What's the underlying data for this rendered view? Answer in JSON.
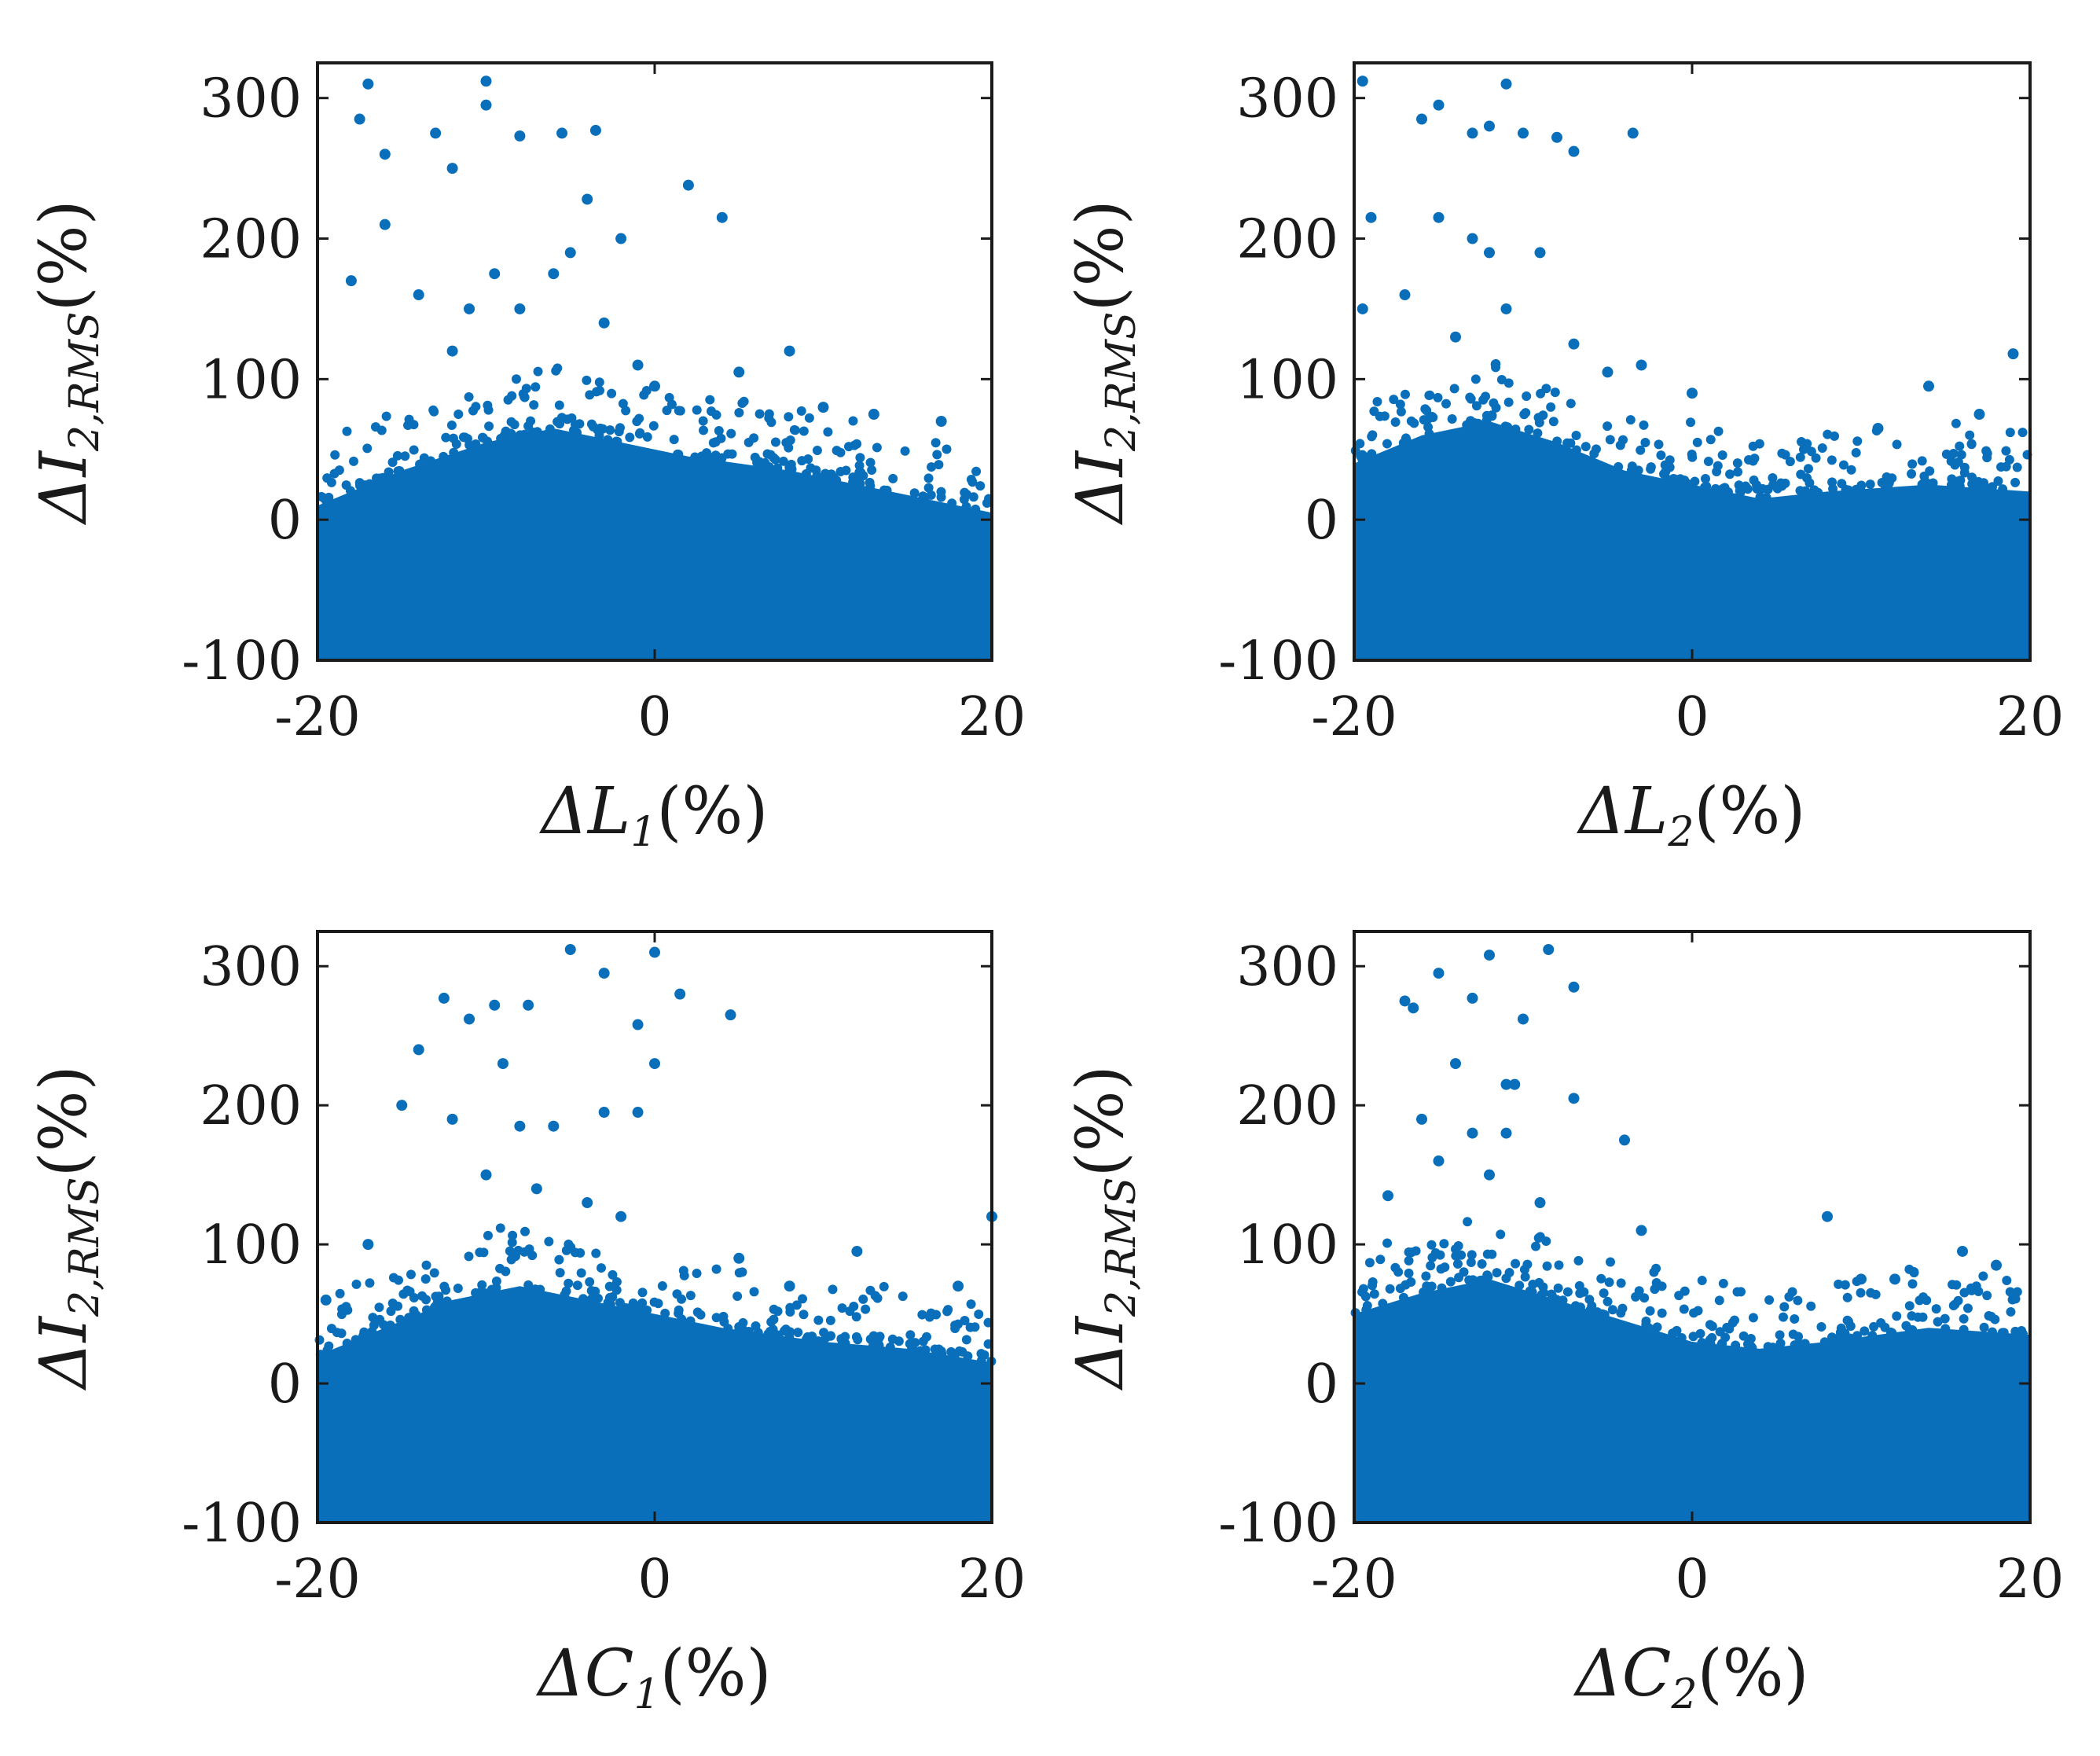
{
  "figure": {
    "marker_color": "#0a6fbb",
    "axis_color": "#1a1a1a"
  },
  "chart_data": [
    {
      "type": "scatter",
      "id": "L1",
      "xlabel": "ΔL1(%)",
      "xlabel_parts": {
        "symbol": "ΔL",
        "sub": "1",
        "unit": "(%)"
      },
      "ylabel": "ΔI2,RMS(%)",
      "ylabel_parts": {
        "symbol": "ΔI",
        "sub": "2,RMS",
        "unit": "(%)"
      },
      "xlim": [
        -20,
        20
      ],
      "ylim": [
        -100,
        325
      ],
      "xticks": [
        "-20",
        "0",
        "20"
      ],
      "yticks": [
        "-100",
        "0",
        "100",
        "200",
        "300"
      ],
      "cluster": {
        "x_range": [
          -20,
          20
        ],
        "y_low": -100,
        "upper_envelope": [
          [
            -20,
            10
          ],
          [
            -15,
            35
          ],
          [
            -10,
            55
          ],
          [
            -6,
            65
          ],
          [
            -2,
            55
          ],
          [
            2,
            45
          ],
          [
            8,
            35
          ],
          [
            14,
            20
          ],
          [
            20,
            5
          ]
        ]
      },
      "outliers": [
        [
          -17,
          310
        ],
        [
          -10,
          312
        ],
        [
          -10,
          295
        ],
        [
          -17.5,
          285
        ],
        [
          -13,
          275
        ],
        [
          -8,
          273
        ],
        [
          -5.5,
          275
        ],
        [
          -3.5,
          277
        ],
        [
          -16,
          260
        ],
        [
          -12,
          250
        ],
        [
          -4,
          228
        ],
        [
          2,
          238
        ],
        [
          4,
          215
        ],
        [
          -2,
          200
        ],
        [
          -16,
          210
        ],
        [
          -9.5,
          175
        ],
        [
          -6,
          175
        ],
        [
          -14,
          160
        ],
        [
          -11,
          150
        ],
        [
          -5,
          190
        ],
        [
          -8,
          150
        ],
        [
          -18,
          170
        ],
        [
          -3,
          140
        ],
        [
          -1,
          110
        ],
        [
          5,
          105
        ],
        [
          8,
          120
        ],
        [
          -12,
          120
        ],
        [
          0,
          95
        ],
        [
          10,
          80
        ],
        [
          17,
          70
        ],
        [
          13,
          75
        ]
      ]
    },
    {
      "type": "scatter",
      "id": "L2",
      "xlabel": "ΔL2(%)",
      "xlabel_parts": {
        "symbol": "ΔL",
        "sub": "2",
        "unit": "(%)"
      },
      "ylabel": "ΔI2,RMS(%)",
      "ylabel_parts": {
        "symbol": "ΔI",
        "sub": "2,RMS",
        "unit": "(%)"
      },
      "xlim": [
        -20,
        20
      ],
      "ylim": [
        -100,
        325
      ],
      "xticks": [
        "-20",
        "0",
        "20"
      ],
      "yticks": [
        "-100",
        "0",
        "100",
        "200",
        "300"
      ],
      "cluster": {
        "x_range": [
          -20,
          20
        ],
        "y_low": -100,
        "upper_envelope": [
          [
            -20,
            40
          ],
          [
            -16,
            60
          ],
          [
            -12,
            70
          ],
          [
            -8,
            55
          ],
          [
            -4,
            35
          ],
          [
            0,
            25
          ],
          [
            4,
            15
          ],
          [
            8,
            20
          ],
          [
            14,
            25
          ],
          [
            20,
            20
          ]
        ]
      },
      "outliers": [
        [
          -19.5,
          312
        ],
        [
          -11,
          310
        ],
        [
          -15,
          295
        ],
        [
          -16,
          285
        ],
        [
          -13,
          275
        ],
        [
          -12,
          280
        ],
        [
          -10,
          275
        ],
        [
          -8,
          272
        ],
        [
          -7,
          262
        ],
        [
          -3.5,
          275
        ],
        [
          -19,
          215
        ],
        [
          -15,
          215
        ],
        [
          -13,
          200
        ],
        [
          -12,
          190
        ],
        [
          -9,
          190
        ],
        [
          -17,
          160
        ],
        [
          -19.5,
          150
        ],
        [
          -11,
          150
        ],
        [
          -14,
          130
        ],
        [
          -7,
          125
        ],
        [
          -5,
          105
        ],
        [
          -3,
          110
        ],
        [
          0,
          90
        ],
        [
          14,
          95
        ],
        [
          19,
          118
        ],
        [
          17,
          75
        ],
        [
          11,
          65
        ]
      ]
    },
    {
      "type": "scatter",
      "id": "C1",
      "xlabel": "ΔC1(%)",
      "xlabel_parts": {
        "symbol": "ΔC",
        "sub": "1",
        "unit": "(%)"
      },
      "ylabel": "ΔI2,RMS(%)",
      "ylabel_parts": {
        "symbol": "ΔI",
        "sub": "2,RMS",
        "unit": "(%)"
      },
      "xlim": [
        -20,
        20
      ],
      "ylim": [
        -100,
        325
      ],
      "xticks": [
        "-20",
        "0",
        "20"
      ],
      "yticks": [
        "-100",
        "0",
        "100",
        "200",
        "300"
      ],
      "cluster": {
        "x_range": [
          -20,
          20
        ],
        "y_low": -100,
        "upper_envelope": [
          [
            -20,
            20
          ],
          [
            -16,
            40
          ],
          [
            -12,
            60
          ],
          [
            -8,
            70
          ],
          [
            -4,
            60
          ],
          [
            0,
            50
          ],
          [
            4,
            40
          ],
          [
            10,
            30
          ],
          [
            15,
            25
          ],
          [
            20,
            15
          ]
        ]
      },
      "outliers": [
        [
          -5,
          312
        ],
        [
          0,
          310
        ],
        [
          -3,
          295
        ],
        [
          1.5,
          280
        ],
        [
          4.5,
          265
        ],
        [
          -12.5,
          277
        ],
        [
          -9.5,
          272
        ],
        [
          -7.5,
          272
        ],
        [
          -11,
          262
        ],
        [
          -1,
          258
        ],
        [
          -14,
          240
        ],
        [
          -9,
          230
        ],
        [
          0,
          230
        ],
        [
          -15,
          200
        ],
        [
          -12,
          190
        ],
        [
          -8,
          185
        ],
        [
          -6,
          185
        ],
        [
          -3,
          195
        ],
        [
          -1,
          195
        ],
        [
          -10,
          150
        ],
        [
          -7,
          140
        ],
        [
          -4,
          130
        ],
        [
          -2,
          120
        ],
        [
          -17,
          100
        ],
        [
          5,
          90
        ],
        [
          8,
          70
        ],
        [
          12,
          95
        ],
        [
          18,
          70
        ],
        [
          20,
          120
        ],
        [
          -19.5,
          60
        ]
      ]
    },
    {
      "type": "scatter",
      "id": "C2",
      "xlabel": "ΔC2(%)",
      "xlabel_parts": {
        "symbol": "ΔC",
        "sub": "2",
        "unit": "(%)"
      },
      "ylabel": "ΔI2,RMS(%)",
      "ylabel_parts": {
        "symbol": "ΔI",
        "sub": "2,RMS",
        "unit": "(%)"
      },
      "xlim": [
        -20,
        20
      ],
      "ylim": [
        -100,
        325
      ],
      "xticks": [
        "-20",
        "0",
        "20"
      ],
      "yticks": [
        "-100",
        "0",
        "100",
        "200",
        "300"
      ],
      "cluster": {
        "x_range": [
          -20,
          20
        ],
        "y_low": -100,
        "upper_envelope": [
          [
            -20,
            50
          ],
          [
            -16,
            65
          ],
          [
            -12,
            75
          ],
          [
            -8,
            60
          ],
          [
            -4,
            45
          ],
          [
            0,
            30
          ],
          [
            4,
            25
          ],
          [
            8,
            30
          ],
          [
            14,
            40
          ],
          [
            20,
            35
          ]
        ]
      },
      "outliers": [
        [
          -8.5,
          312
        ],
        [
          -12,
          308
        ],
        [
          -15,
          295
        ],
        [
          -17,
          275
        ],
        [
          -16.5,
          270
        ],
        [
          -13,
          277
        ],
        [
          -10,
          262
        ],
        [
          -7,
          285
        ],
        [
          -14,
          230
        ],
        [
          -16,
          190
        ],
        [
          -11,
          215
        ],
        [
          -10.5,
          215
        ],
        [
          -13,
          180
        ],
        [
          -11,
          180
        ],
        [
          -7,
          205
        ],
        [
          -4,
          175
        ],
        [
          -15,
          160
        ],
        [
          -12,
          150
        ],
        [
          -18,
          135
        ],
        [
          -9,
          130
        ],
        [
          -3,
          110
        ],
        [
          8,
          120
        ],
        [
          16,
          95
        ],
        [
          18,
          85
        ],
        [
          10,
          75
        ],
        [
          12,
          75
        ]
      ]
    }
  ]
}
